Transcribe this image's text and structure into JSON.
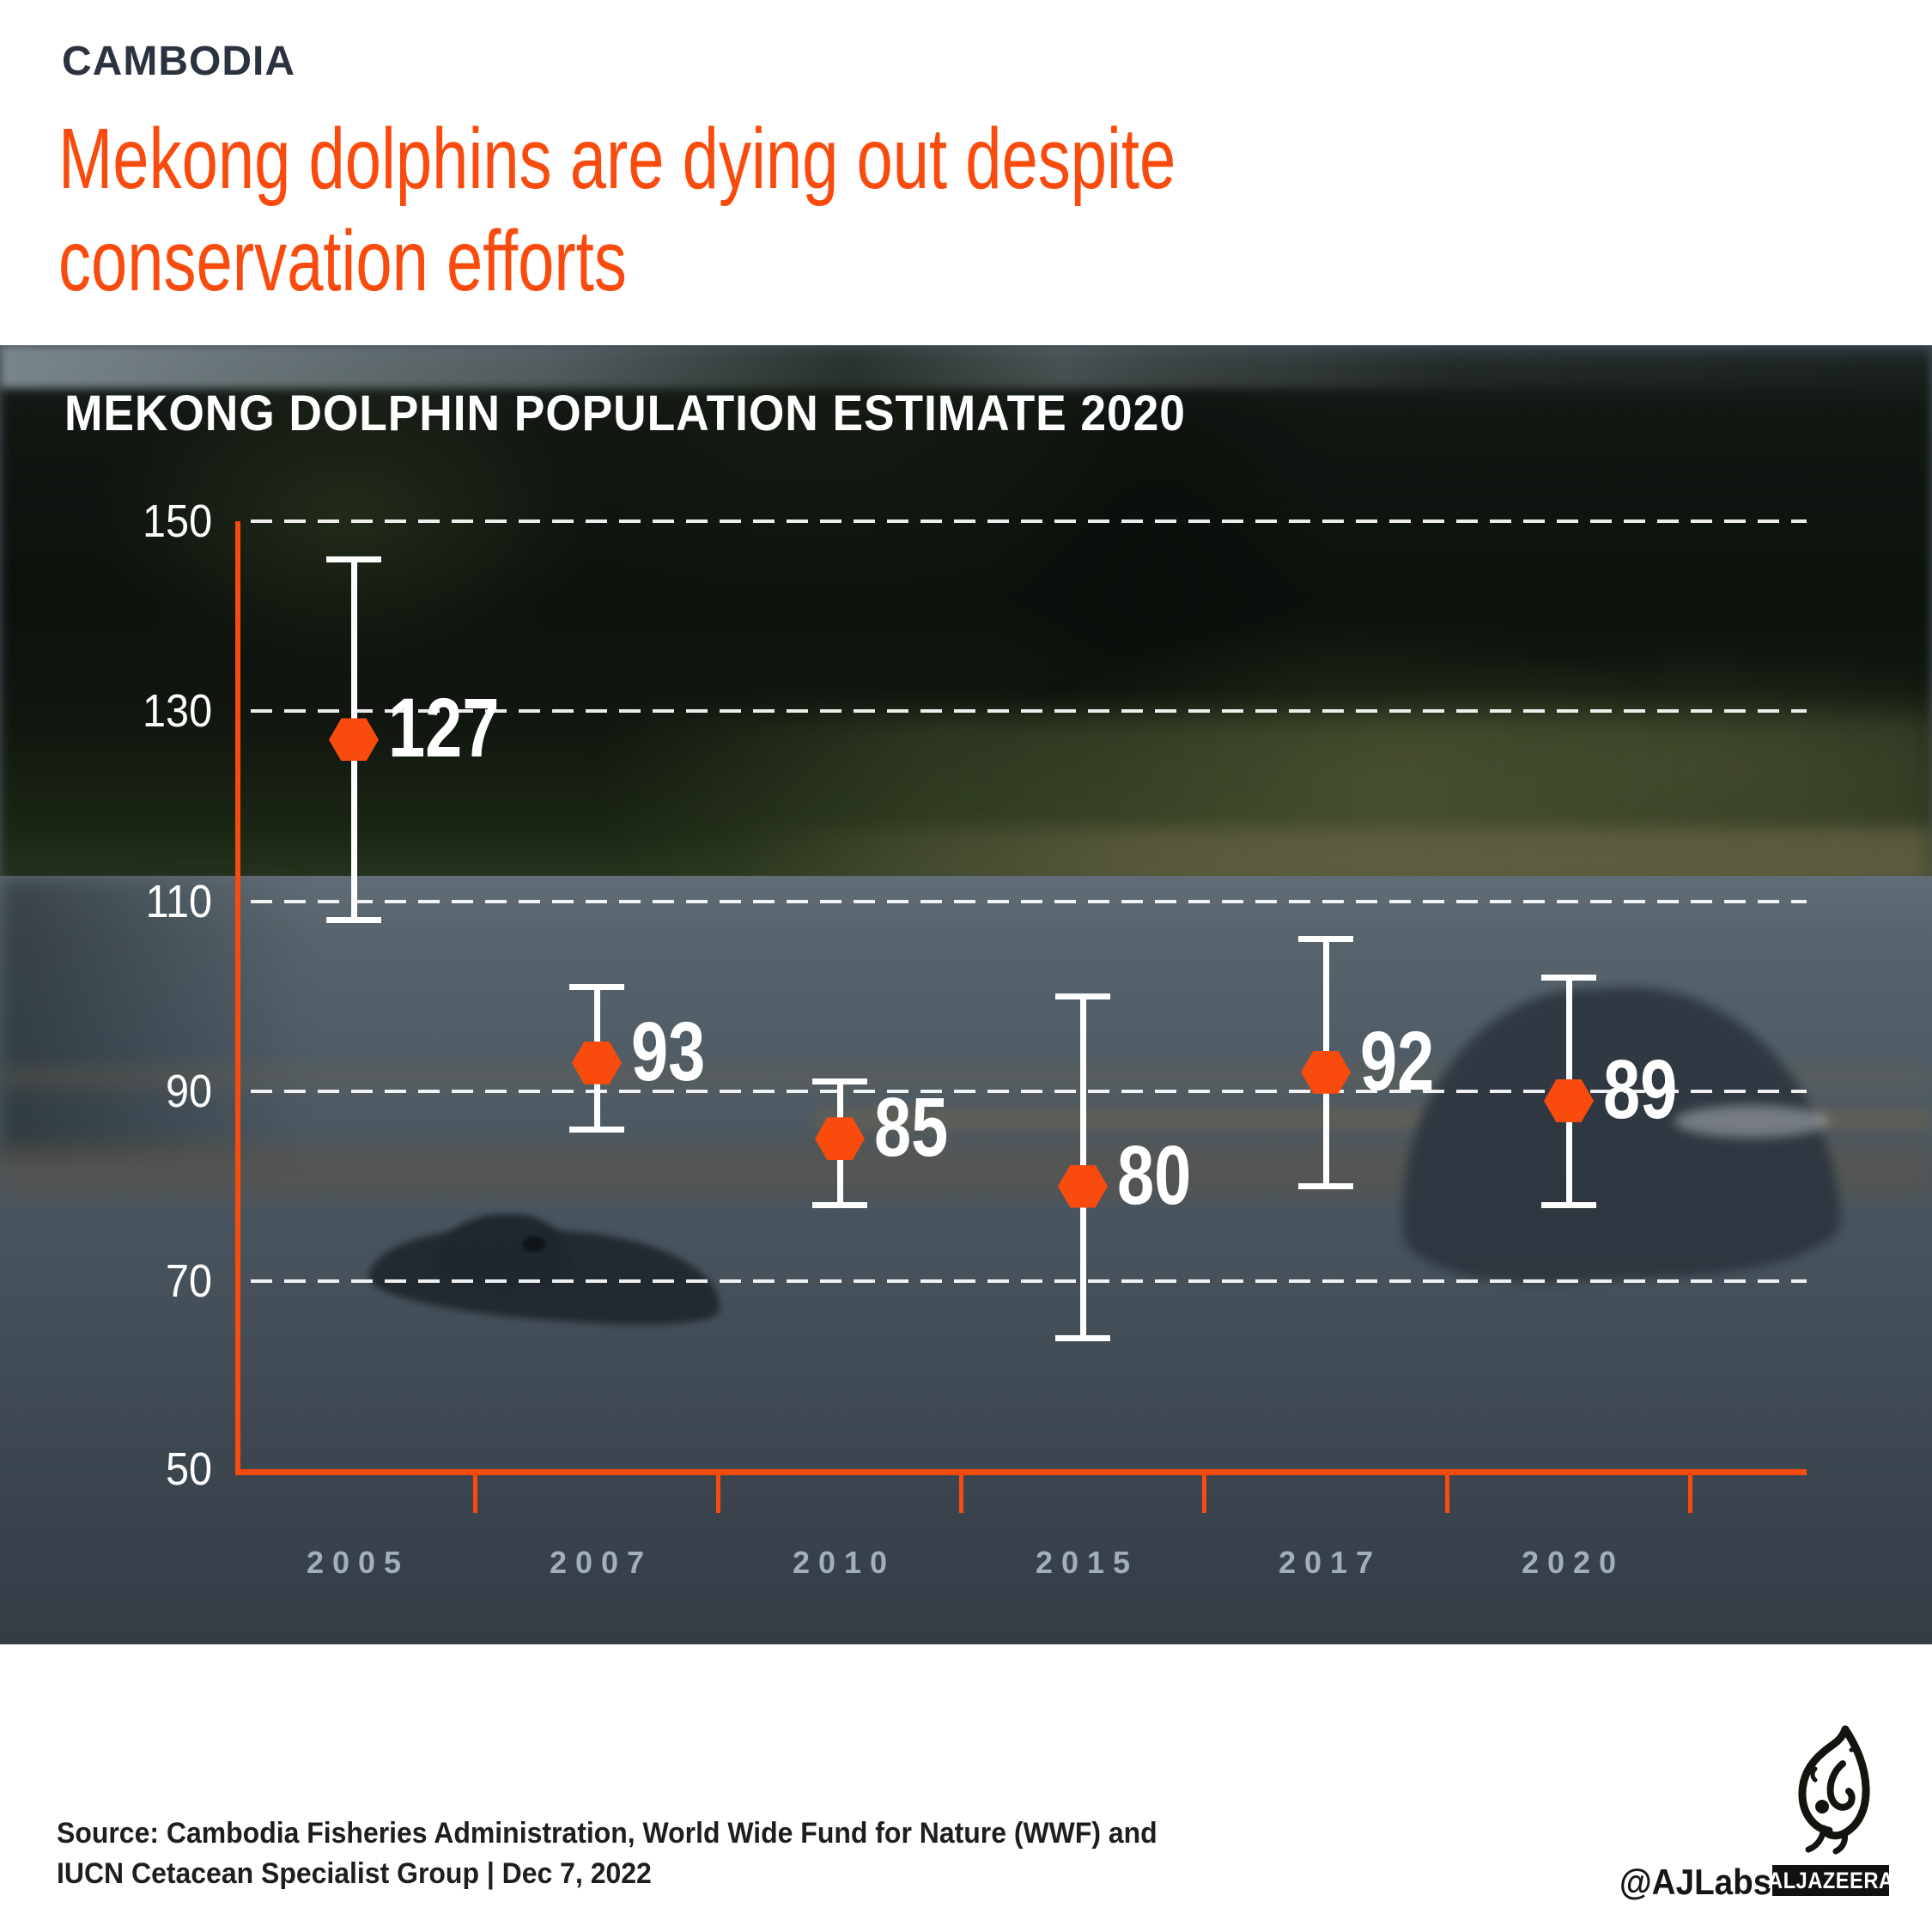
{
  "header": {
    "kicker": "CAMBODIA",
    "title": "Mekong dolphins are dying out despite conservation efforts",
    "title_lines": [
      "Mekong dolphins are dying out despite",
      "conservation efforts"
    ]
  },
  "chart_data": {
    "type": "scatter",
    "title": "MEKONG DOLPHIN POPULATION ESTIMATE 2020",
    "categories": [
      "2005",
      "2007",
      "2010",
      "2015",
      "2017",
      "2020"
    ],
    "series": [
      {
        "name": "Population estimate",
        "values": [
          127,
          93,
          85,
          80,
          92,
          89
        ],
        "ci_low": [
          108,
          86,
          78,
          64,
          80,
          78
        ],
        "ci_high": [
          146,
          101,
          91,
          100,
          106,
          102
        ]
      }
    ],
    "ylim": [
      50,
      150
    ],
    "yticks": [
      50,
      70,
      90,
      110,
      130,
      150
    ],
    "xlabel": "",
    "ylabel": "",
    "grid": "horizontal-dashed",
    "legend_position": "none",
    "point_shape": "hexagon",
    "point_color": "#f94b0d",
    "errorbar_color": "#ffffff",
    "axis_color": "#f94b0d"
  },
  "footer": {
    "source_lines": [
      "Source: Cambodia Fisheries Administration, World Wide Fund for Nature (WWF) and",
      "IUCN Cetacean Specialist Group   |   Dec 7, 2022"
    ],
    "handle": "@AJLabs",
    "brand": "ALJAZEERA"
  },
  "colors": {
    "accent": "#f94b0d",
    "kicker_text": "#2b3340",
    "chart_text": "#ffffff",
    "year_label": "#cbd9e2",
    "footer_text": "#1e1e1e"
  }
}
